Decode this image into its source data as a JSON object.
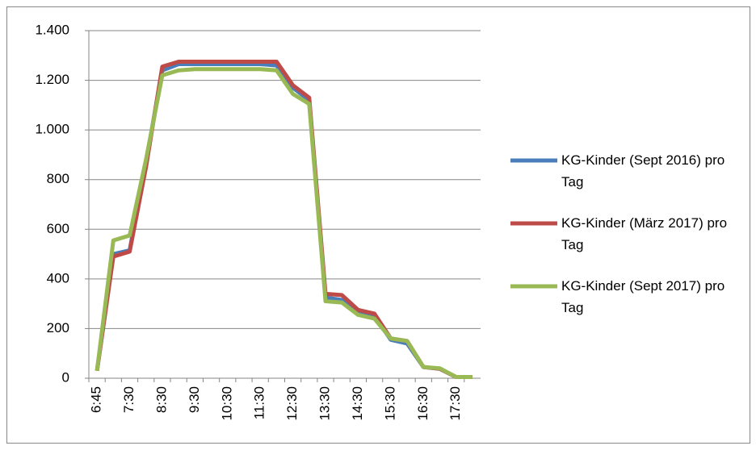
{
  "chart_data": {
    "type": "line",
    "categories": [
      "6:45",
      null,
      "7:30",
      null,
      "8:30",
      null,
      "9:30",
      null,
      "10:30",
      null,
      "11:30",
      null,
      "12:30",
      null,
      "13:30",
      null,
      "14:30",
      null,
      "15:30",
      null,
      "16:30",
      null,
      "17:30",
      null
    ],
    "series": [
      {
        "name": "KG-Kinder (Sept 2016) pro Tag",
        "color": "#4a7ebb",
        "values": [
          30,
          500,
          515,
          870,
          1240,
          1265,
          1265,
          1265,
          1265,
          1265,
          1265,
          1260,
          1170,
          1120,
          325,
          315,
          265,
          250,
          155,
          140,
          45,
          38,
          5,
          5
        ]
      },
      {
        "name": "KG-Kinder (März 2017) pro Tag",
        "color": "#be4b48",
        "values": [
          30,
          490,
          510,
          850,
          1255,
          1275,
          1275,
          1275,
          1275,
          1275,
          1275,
          1275,
          1180,
          1130,
          340,
          335,
          275,
          260,
          160,
          150,
          45,
          38,
          5,
          5
        ]
      },
      {
        "name": "KG-Kinder (Sept 2017) pro Tag",
        "color": "#98b954",
        "values": [
          30,
          555,
          575,
          880,
          1220,
          1240,
          1245,
          1245,
          1245,
          1245,
          1245,
          1240,
          1145,
          1105,
          310,
          305,
          255,
          240,
          160,
          150,
          45,
          40,
          5,
          5
        ]
      }
    ],
    "ylim": [
      0,
      1400
    ],
    "yticks": [
      0,
      200,
      400,
      600,
      800,
      {
        "value": 1000,
        "label": "1.000"
      },
      {
        "value": 1200,
        "label": "1.200"
      },
      {
        "value": 1400,
        "label": "1.400"
      }
    ],
    "grid": true,
    "legend": "right"
  }
}
